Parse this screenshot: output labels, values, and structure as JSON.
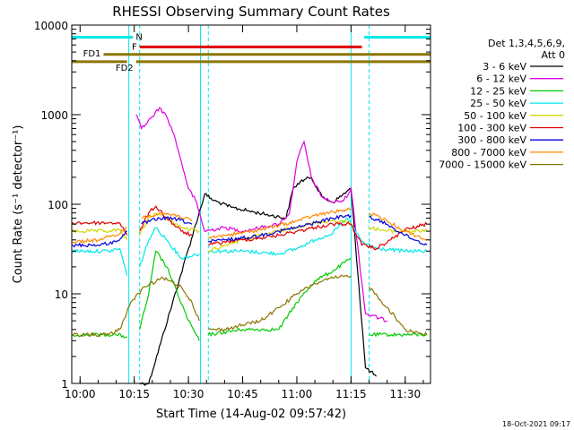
{
  "chart_data": {
    "type": "line",
    "title": "RHESSI Observing Summary Count Rates",
    "xlabel": "Start Time (14-Aug-02 09:57:42)",
    "ylabel": "Count Rate (s⁻¹ detector⁻¹)",
    "yscale": "log",
    "ylim": [
      1,
      10000
    ],
    "xlim": [
      "09:57:42",
      "11:37:00"
    ],
    "grid": false,
    "legend_position": "top-right",
    "legend_header": [
      "Det 1,3,4,5,6,9,",
      "Att 0"
    ],
    "footer_date": "18-Oct-2021 09:17",
    "x_ticks": [
      "10:00",
      "10:15",
      "10:30",
      "10:45",
      "11:00",
      "11:15",
      "11:30"
    ],
    "y_ticks": [
      "1",
      "10",
      "100",
      "1000",
      "10000"
    ],
    "gaps": [
      {
        "start": "10:13:30",
        "end": "10:16:30"
      },
      {
        "start": "10:33:20",
        "end": "10:35:30"
      },
      {
        "start": "11:15:00",
        "end": "11:20:00"
      }
    ],
    "flag_bars": [
      {
        "label": "N",
        "color": "#00e8e8",
        "segments": [
          [
            "09:57:42",
            "10:14:40"
          ],
          [
            "11:18:40",
            "11:37:00"
          ]
        ],
        "y": 7300
      },
      {
        "label": "F",
        "color": "#e00000",
        "segments": [
          [
            "10:16:30",
            "11:18:00"
          ]
        ],
        "y": 5700
      },
      {
        "label": "FD1",
        "color": "#8b7500",
        "segments": [
          [
            "10:06:30",
            "11:37:00"
          ]
        ],
        "y": 4700
      },
      {
        "label": "FD2",
        "color": "#8b7500",
        "segments": [
          [
            "09:57:42",
            "10:13:00"
          ],
          [
            "10:15:30",
            "11:37:00"
          ]
        ],
        "y": 3900
      }
    ],
    "series": [
      {
        "name": "3 - 6 keV",
        "color": "#000000",
        "points": [
          [
            "10:13:30",
            1.3
          ],
          [
            "10:16:30",
            1
          ],
          [
            "10:19:00",
            1
          ],
          [
            "10:34:30",
            130
          ],
          [
            "10:37",
            110
          ],
          [
            "10:42",
            92
          ],
          [
            "10:48",
            82
          ],
          [
            "10:53",
            75
          ],
          [
            "10:57",
            70
          ],
          [
            "10:59",
            150
          ],
          [
            "11:01",
            180
          ],
          [
            "11:04",
            200
          ],
          [
            "11:07",
            120
          ],
          [
            "11:10",
            105
          ],
          [
            "11:15",
            150
          ],
          [
            "11:19",
            1.5
          ],
          [
            "11:22",
            1.2
          ]
        ]
      },
      {
        "name": "6 - 12 keV",
        "color": "#e000e0",
        "points": [
          [
            "10:15:30",
            1000
          ],
          [
            "10:17",
            700
          ],
          [
            "10:20",
            950
          ],
          [
            "10:22",
            1200
          ],
          [
            "10:24",
            950
          ],
          [
            "10:26",
            600
          ],
          [
            "10:28",
            300
          ],
          [
            "10:30",
            150
          ],
          [
            "10:32",
            110
          ],
          [
            "10:34:30",
            50
          ],
          [
            "10:40",
            55
          ],
          [
            "10:45",
            50
          ],
          [
            "10:50",
            55
          ],
          [
            "10:55",
            60
          ],
          [
            "10:58",
            80
          ],
          [
            "11:00",
            300
          ],
          [
            "11:02",
            500
          ],
          [
            "11:04",
            200
          ],
          [
            "11:07",
            120
          ],
          [
            "11:10",
            105
          ],
          [
            "11:13",
            110
          ],
          [
            "11:15",
            150
          ],
          [
            "11:19",
            6
          ],
          [
            "11:25",
            5
          ]
        ]
      },
      {
        "name": "12 - 25 keV",
        "color": "#00cc00",
        "points": [
          [
            "09:57:42",
            3.5
          ],
          [
            "10:05",
            3.5
          ],
          [
            "10:10",
            3.5
          ],
          [
            "10:13",
            3.3
          ],
          [
            "10:16:30",
            4
          ],
          [
            "10:19",
            10
          ],
          [
            "10:21",
            30
          ],
          [
            "10:24",
            20
          ],
          [
            "10:27",
            10
          ],
          [
            "10:30",
            5
          ],
          [
            "10:33",
            3
          ],
          [
            "10:35:30",
            3.5
          ],
          [
            "10:45",
            4
          ],
          [
            "10:55",
            4
          ],
          [
            "11:00",
            8
          ],
          [
            "11:05",
            14
          ],
          [
            "11:10",
            18
          ],
          [
            "11:15",
            25
          ],
          [
            "11:20",
            3.5
          ],
          [
            "11:30",
            3.5
          ],
          [
            "11:36",
            3.5
          ]
        ]
      },
      {
        "name": "25 - 50 keV",
        "color": "#00e8e8",
        "points": [
          [
            "09:57:42",
            30
          ],
          [
            "10:08",
            30
          ],
          [
            "10:11",
            32
          ],
          [
            "10:13",
            16
          ],
          [
            "10:16:30",
            20
          ],
          [
            "10:19",
            40
          ],
          [
            "10:21",
            55
          ],
          [
            "10:24",
            40
          ],
          [
            "10:28",
            25
          ],
          [
            "10:33",
            28
          ],
          [
            "10:35:30",
            30
          ],
          [
            "10:45",
            30
          ],
          [
            "10:55",
            28
          ],
          [
            "11:00",
            32
          ],
          [
            "11:05",
            40
          ],
          [
            "11:10",
            48
          ],
          [
            "11:14",
            70
          ],
          [
            "11:18",
            38
          ],
          [
            "11:22",
            32
          ],
          [
            "11:30",
            30
          ],
          [
            "11:36",
            30
          ]
        ]
      },
      {
        "name": "50 - 100 keV",
        "color": "#d4d400",
        "points": [
          [
            "09:57:42",
            50
          ],
          [
            "10:08",
            50
          ],
          [
            "10:11",
            52
          ],
          [
            "10:13",
            40
          ],
          [
            "10:16:30",
            45
          ],
          [
            "10:19",
            70
          ],
          [
            "10:21",
            80
          ],
          [
            "10:24",
            70
          ],
          [
            "10:28",
            55
          ],
          [
            "10:33",
            50
          ],
          [
            "10:35:30",
            30
          ],
          [
            "10:40",
            35
          ],
          [
            "10:45",
            40
          ],
          [
            "10:50",
            45
          ],
          [
            "10:55",
            50
          ],
          [
            "11:00",
            56
          ],
          [
            "11:05",
            62
          ],
          [
            "11:10",
            66
          ],
          [
            "11:15",
            62
          ],
          [
            "11:20",
            55
          ],
          [
            "11:25",
            50
          ],
          [
            "11:36",
            50
          ]
        ]
      },
      {
        "name": "100 - 300 keV",
        "color": "#e00000",
        "points": [
          [
            "09:57:42",
            62
          ],
          [
            "10:08",
            62
          ],
          [
            "10:11",
            62
          ],
          [
            "10:13",
            45
          ],
          [
            "10:16:30",
            50
          ],
          [
            "10:19",
            80
          ],
          [
            "10:21",
            95
          ],
          [
            "10:24",
            70
          ],
          [
            "10:28",
            50
          ],
          [
            "10:31",
            45
          ],
          [
            "10:35:30",
            35
          ],
          [
            "10:40",
            38
          ],
          [
            "10:45",
            40
          ],
          [
            "10:50",
            42
          ],
          [
            "10:55",
            45
          ],
          [
            "11:00",
            50
          ],
          [
            "11:05",
            55
          ],
          [
            "11:10",
            60
          ],
          [
            "11:15",
            60
          ],
          [
            "11:18",
            35
          ],
          [
            "11:22",
            32
          ],
          [
            "11:26",
            40
          ],
          [
            "11:30",
            52
          ],
          [
            "11:36",
            60
          ]
        ]
      },
      {
        "name": "300 - 800 keV",
        "color": "#0000dd",
        "points": [
          [
            "09:57:42",
            35
          ],
          [
            "10:05",
            35
          ],
          [
            "10:10",
            38
          ],
          [
            "10:13",
            50
          ],
          [
            "10:17",
            60
          ],
          [
            "10:22",
            70
          ],
          [
            "10:27",
            68
          ],
          [
            "10:31",
            60
          ],
          [
            "10:35:30",
            38
          ],
          [
            "10:40",
            40
          ],
          [
            "10:45",
            42
          ],
          [
            "10:50",
            45
          ],
          [
            "10:55",
            50
          ],
          [
            "11:00",
            55
          ],
          [
            "11:05",
            62
          ],
          [
            "11:10",
            70
          ],
          [
            "11:15",
            75
          ],
          [
            "11:20",
            72
          ],
          [
            "11:25",
            60
          ],
          [
            "11:30",
            45
          ],
          [
            "11:36",
            35
          ]
        ]
      },
      {
        "name": "800 - 7000 keV",
        "color": "#ff8800",
        "points": [
          [
            "09:57:42",
            38
          ],
          [
            "10:05",
            40
          ],
          [
            "10:10",
            45
          ],
          [
            "10:13",
            55
          ],
          [
            "10:17",
            70
          ],
          [
            "10:22",
            80
          ],
          [
            "10:27",
            75
          ],
          [
            "10:31",
            65
          ],
          [
            "10:35:30",
            42
          ],
          [
            "10:40",
            45
          ],
          [
            "10:45",
            48
          ],
          [
            "10:50",
            52
          ],
          [
            "10:55",
            58
          ],
          [
            "11:00",
            65
          ],
          [
            "11:05",
            75
          ],
          [
            "11:10",
            82
          ],
          [
            "11:15",
            88
          ],
          [
            "11:20",
            80
          ],
          [
            "11:25",
            65
          ],
          [
            "11:30",
            50
          ],
          [
            "11:36",
            40
          ]
        ]
      },
      {
        "name": "7000 - 15000 keV",
        "color": "#8b7500",
        "points": [
          [
            "09:57:42",
            3.5
          ],
          [
            "10:08",
            3.5
          ],
          [
            "10:11",
            4
          ],
          [
            "10:14",
            8
          ],
          [
            "10:18",
            12
          ],
          [
            "10:23",
            15
          ],
          [
            "10:28",
            12
          ],
          [
            "10:31",
            8
          ],
          [
            "10:33",
            5
          ],
          [
            "10:35:30",
            4
          ],
          [
            "10:40",
            4
          ],
          [
            "10:45",
            4.5
          ],
          [
            "10:50",
            5
          ],
          [
            "10:55",
            7
          ],
          [
            "11:00",
            10
          ],
          [
            "11:05",
            13
          ],
          [
            "11:10",
            15
          ],
          [
            "11:15",
            16
          ],
          [
            "11:20",
            12
          ],
          [
            "11:25",
            7
          ],
          [
            "11:30",
            4
          ],
          [
            "11:36",
            3.5
          ]
        ]
      }
    ]
  }
}
